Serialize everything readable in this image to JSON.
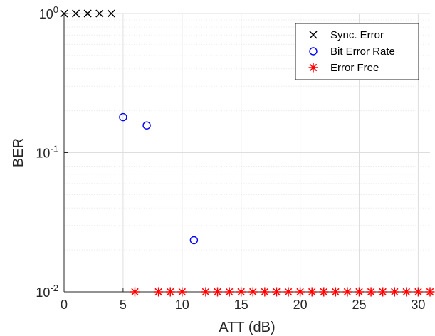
{
  "chart_data": {
    "type": "scatter",
    "xlabel": "ATT (dB)",
    "ylabel": "BER",
    "xlim": [
      0,
      31
    ],
    "ylim": [
      0.01,
      1
    ],
    "yscale": "log",
    "grid": true,
    "legend_position": "top-right",
    "x_ticks": [
      0,
      5,
      10,
      15,
      20,
      25,
      30
    ],
    "x_tick_labels": [
      "0",
      "5",
      "10",
      "15",
      "20",
      "25",
      "30"
    ],
    "y_ticks": [
      0.01,
      0.1,
      1
    ],
    "y_tick_labels": [
      {
        "base": "10",
        "exp": "-2"
      },
      {
        "base": "10",
        "exp": "-1"
      },
      {
        "base": "10",
        "exp": "0"
      }
    ],
    "series": [
      {
        "name": "Sync. Error",
        "marker": "x",
        "color": "#000000",
        "points": [
          [
            0,
            1
          ],
          [
            1,
            1
          ],
          [
            2,
            1
          ],
          [
            3,
            1
          ],
          [
            4,
            1
          ]
        ]
      },
      {
        "name": "Bit Error Rate",
        "marker": "o",
        "color": "#0000ff",
        "points": [
          [
            5,
            0.18
          ],
          [
            7,
            0.157
          ],
          [
            11,
            0.0235
          ]
        ]
      },
      {
        "name": "Error Free",
        "marker": "*",
        "color": "#ff0000",
        "points": [
          [
            6,
            0.01
          ],
          [
            8,
            0.01
          ],
          [
            9,
            0.01
          ],
          [
            10,
            0.01
          ],
          [
            12,
            0.01
          ],
          [
            13,
            0.01
          ],
          [
            14,
            0.01
          ],
          [
            15,
            0.01
          ],
          [
            16,
            0.01
          ],
          [
            17,
            0.01
          ],
          [
            18,
            0.01
          ],
          [
            19,
            0.01
          ],
          [
            20,
            0.01
          ],
          [
            21,
            0.01
          ],
          [
            22,
            0.01
          ],
          [
            23,
            0.01
          ],
          [
            24,
            0.01
          ],
          [
            25,
            0.01
          ],
          [
            26,
            0.01
          ],
          [
            27,
            0.01
          ],
          [
            28,
            0.01
          ],
          [
            29,
            0.01
          ],
          [
            30,
            0.01
          ],
          [
            31,
            0.01
          ]
        ]
      }
    ]
  }
}
